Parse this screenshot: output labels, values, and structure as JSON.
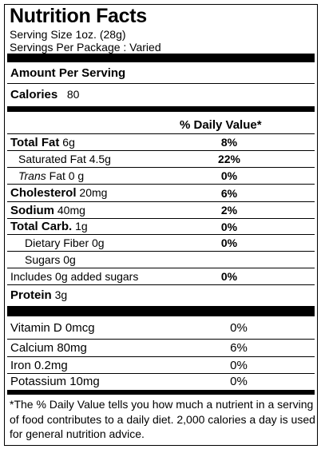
{
  "header": {
    "title": "Nutrition Facts",
    "serving_size": "Serving Size 1oz.  (28g)",
    "servings": "Servings Per Package : Varied"
  },
  "amount_per_serving": "Amount Per Serving",
  "calories": {
    "label": "Calories",
    "value": "80"
  },
  "daily_value_header": "% Daily Value*",
  "nutrients": [
    {
      "name": "Total Fat",
      "amount": "6g",
      "dv": "8%"
    },
    {
      "name": "Saturated Fat 4.5g",
      "dv": "22%"
    },
    {
      "name_italic": "Trans",
      "name": "Fat 0 g",
      "dv": "0%"
    },
    {
      "name": "Cholesterol",
      "amount": "20mg",
      "dv": "6%"
    },
    {
      "name": "Sodium",
      "amount": "40mg",
      "dv": "2%"
    },
    {
      "name": "Total Carb.",
      "amount": "1g",
      "dv": "0%"
    },
    {
      "name": "Dietary Fiber 0g",
      "dv": "0%"
    },
    {
      "name": "Sugars 0g"
    },
    {
      "name": "Includes 0g added sugars",
      "dv": "0%"
    },
    {
      "name": "Protein",
      "amount": "3g"
    }
  ],
  "vitamins": [
    {
      "name": "Vitamin D 0mcg",
      "dv": "0%"
    },
    {
      "name": "Calcium 80mg",
      "dv": "6%"
    },
    {
      "name": "Iron 0.2mg",
      "dv": "0%"
    },
    {
      "name": "Potassium 10mg",
      "dv": "0%"
    }
  ],
  "footnote": "*The % Daily Value tells you how much a nutrient in a serving of food contributes to a daily diet. 2,000 calories a day is used for general nutrition advice."
}
